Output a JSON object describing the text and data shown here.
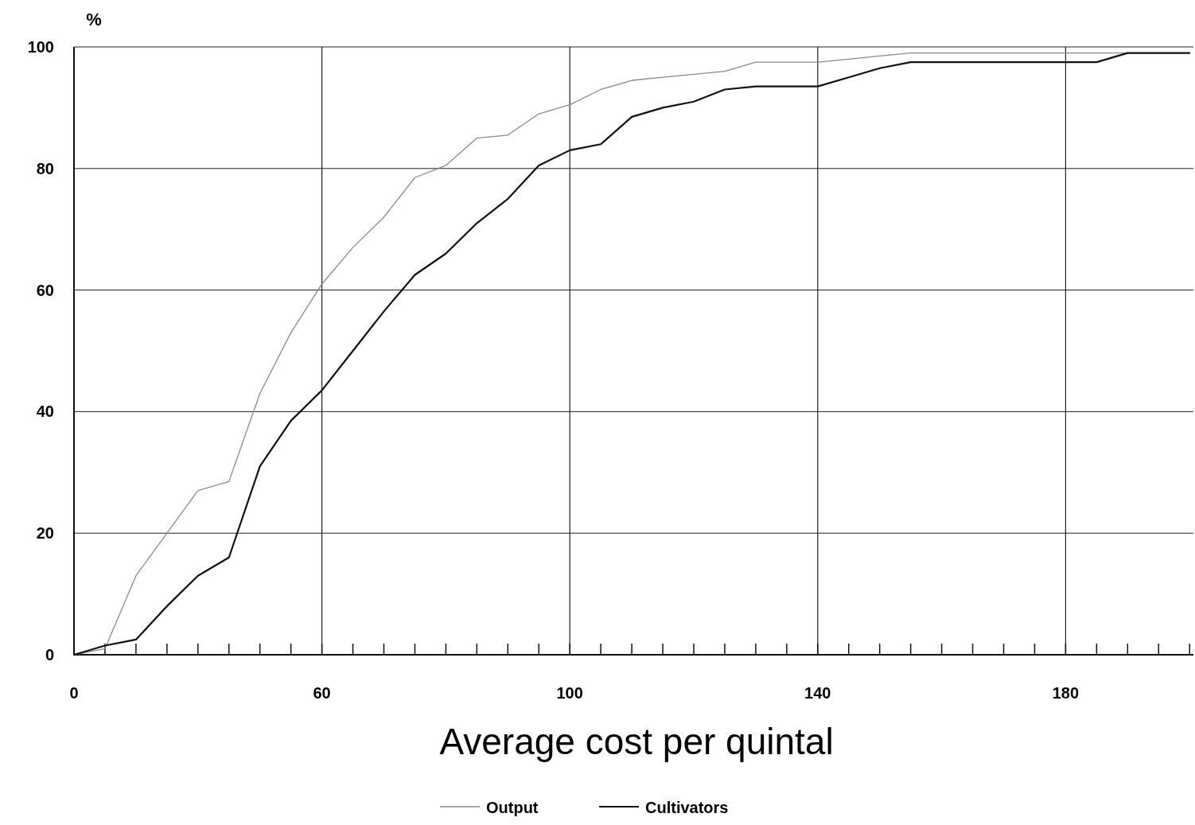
{
  "chart_data": {
    "type": "line",
    "xlabel": "Average cost per quintal",
    "ylabel": "%",
    "categories": [
      "0",
      null,
      null,
      null,
      null,
      null,
      null,
      null,
      "60",
      null,
      null,
      null,
      null,
      null,
      null,
      null,
      "100",
      null,
      null,
      null,
      null,
      null,
      null,
      null,
      "140",
      null,
      null,
      null,
      null,
      null,
      null,
      null,
      "180",
      null,
      null,
      null,
      null
    ],
    "series": [
      {
        "name": "Output",
        "color": "#8a8a8a",
        "values": [
          0,
          1,
          13,
          20,
          27,
          28.5,
          43,
          53,
          61,
          67,
          72,
          78.5,
          80.5,
          85,
          85.5,
          89,
          90.5,
          93,
          94.5,
          95,
          95.5,
          96,
          97.5,
          97.5,
          97.5,
          98,
          98.5,
          99,
          99,
          99,
          99,
          99,
          99,
          99,
          99,
          99,
          99
        ]
      },
      {
        "name": "Cultivators",
        "color": "#111111",
        "values": [
          0,
          1.5,
          2.5,
          8,
          13,
          16,
          31,
          38.5,
          43.5,
          50,
          56.5,
          62.5,
          66,
          71,
          75,
          80.5,
          83,
          84,
          88.5,
          90,
          91,
          93,
          93.5,
          93.5,
          93.5,
          95,
          96.5,
          97.5,
          97.5,
          97.5,
          97.5,
          97.5,
          97.5,
          97.5,
          99,
          99,
          99
        ]
      }
    ],
    "ylim": [
      0,
      100
    ],
    "yticks": [
      0,
      20,
      40,
      60,
      80,
      100
    ],
    "grid": true,
    "legend": "bottom",
    "line_style": "solid",
    "marker": "none"
  }
}
